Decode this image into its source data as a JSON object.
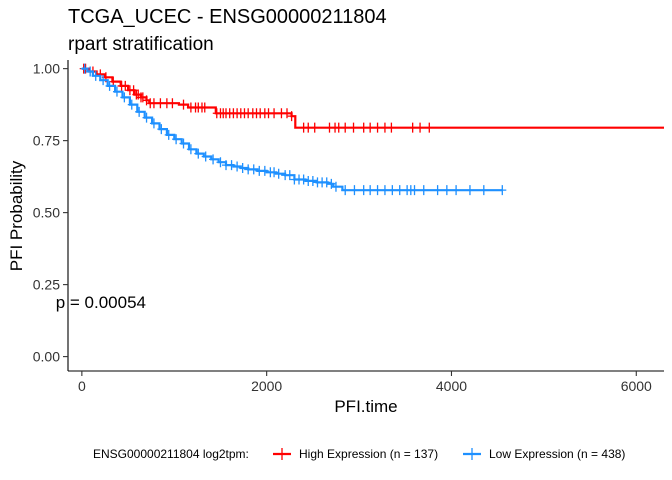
{
  "chart_data": {
    "type": "line",
    "title": "TCGA_UCEC - ENSG00000211804",
    "subtitle": "rpart stratification",
    "xlabel": "PFI.time",
    "ylabel": "PFI Probability",
    "xlim": [
      -150,
      6300
    ],
    "ylim": [
      -0.05,
      1.03
    ],
    "x_ticks": [
      0,
      2000,
      4000,
      6000
    ],
    "y_ticks": [
      0.0,
      0.25,
      0.5,
      0.75,
      1.0
    ],
    "x_tick_labels": [
      "0",
      "2000",
      "4000",
      "6000"
    ],
    "y_tick_labels": [
      "0.00",
      "0.25",
      "0.50",
      "0.75",
      "1.00"
    ],
    "annotation": {
      "text": "p = 0.00054",
      "x": 150,
      "y": 0.19
    },
    "legend": {
      "title": "ENSG00000211804 log2tpm:",
      "position": "bottom",
      "entries": [
        "High Expression (n = 137)",
        "Low Expression (n = 438)"
      ]
    },
    "grid": false,
    "series": [
      {
        "name": "High Expression (n = 137)",
        "color": "#ff0000",
        "x": [
          0,
          80,
          160,
          250,
          330,
          420,
          500,
          570,
          640,
          700,
          730,
          1050,
          1150,
          1450,
          2270,
          2310,
          6300
        ],
        "y": [
          1.0,
          0.99,
          0.98,
          0.97,
          0.955,
          0.94,
          0.925,
          0.91,
          0.9,
          0.89,
          0.88,
          0.875,
          0.865,
          0.845,
          0.835,
          0.795,
          0.795
        ],
        "censor_x": [
          20,
          40,
          120,
          200,
          260,
          340,
          430,
          470,
          520,
          560,
          590,
          610,
          640,
          660,
          700,
          740,
          780,
          850,
          920,
          980,
          1100,
          1180,
          1230,
          1260,
          1300,
          1330,
          1460,
          1500,
          1530,
          1560,
          1600,
          1640,
          1680,
          1720,
          1760,
          1800,
          1850,
          1890,
          1930,
          1980,
          2020,
          2080,
          2160,
          2220,
          2270,
          2400,
          2450,
          2520,
          2680,
          2740,
          2780,
          2850,
          2940,
          3050,
          3120,
          3200,
          3280,
          3350,
          3580,
          3660,
          3760
        ]
      },
      {
        "name": "Low Expression (n = 438)",
        "color": "#1e90ff",
        "x": [
          0,
          60,
          120,
          200,
          280,
          360,
          440,
          520,
          600,
          680,
          760,
          840,
          920,
          1000,
          1080,
          1160,
          1240,
          1320,
          1400,
          1480,
          1560,
          1640,
          1720,
          1800,
          1900,
          2000,
          2100,
          2200,
          2300,
          2420,
          2540,
          2660,
          2720,
          2820,
          3000,
          4550
        ],
        "y": [
          1.0,
          0.99,
          0.975,
          0.96,
          0.94,
          0.92,
          0.9,
          0.875,
          0.85,
          0.83,
          0.81,
          0.79,
          0.77,
          0.755,
          0.74,
          0.72,
          0.705,
          0.695,
          0.685,
          0.675,
          0.665,
          0.66,
          0.655,
          0.65,
          0.645,
          0.64,
          0.635,
          0.63,
          0.615,
          0.61,
          0.605,
          0.6,
          0.59,
          0.578,
          0.578,
          0.578
        ],
        "censor_x": [
          30,
          90,
          150,
          230,
          300,
          380,
          460,
          540,
          620,
          700,
          780,
          860,
          940,
          1020,
          1100,
          1180,
          1260,
          1340,
          1420,
          1500,
          1560,
          1620,
          1680,
          1740,
          1800,
          1860,
          1920,
          1980,
          2040,
          2080,
          2130,
          2200,
          2250,
          2300,
          2350,
          2400,
          2450,
          2500,
          2550,
          2600,
          2650,
          2700,
          2750,
          2850,
          2950,
          3050,
          3120,
          3200,
          3280,
          3360,
          3440,
          3520,
          3560,
          3600,
          3700,
          3850,
          3950,
          4050,
          4200,
          4350,
          4550
        ]
      }
    ]
  }
}
